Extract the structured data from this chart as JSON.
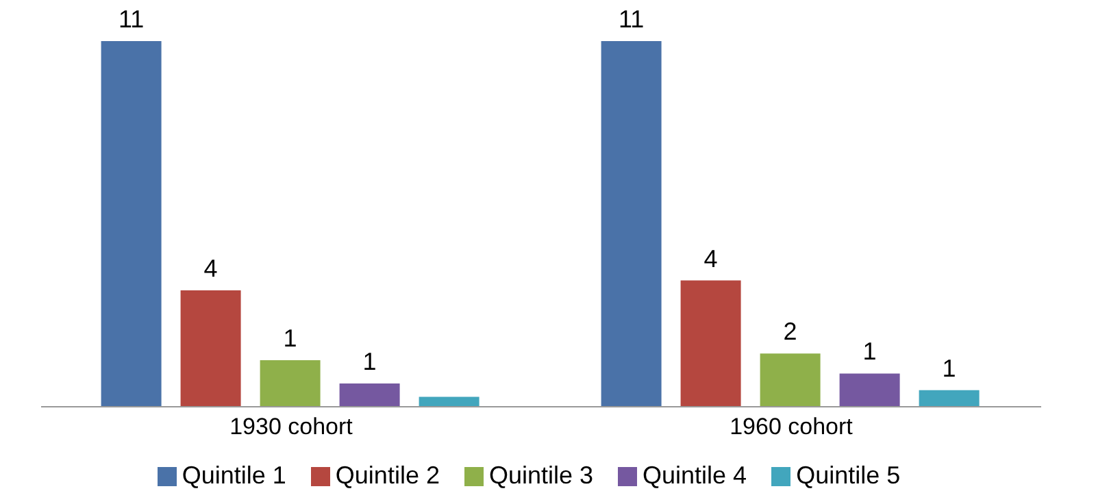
{
  "chart_data": {
    "type": "bar",
    "categories": [
      "1930 cohort",
      "1960 cohort"
    ],
    "series": [
      {
        "name": "Quintile 1",
        "color": "#4a72a8",
        "values": [
          11,
          11
        ],
        "value_labels": [
          "11",
          "11"
        ]
      },
      {
        "name": "Quintile 2",
        "color": "#b5473f",
        "values": [
          3.5,
          3.8
        ],
        "value_labels": [
          "4",
          "4"
        ]
      },
      {
        "name": "Quintile 3",
        "color": "#8fb04a",
        "values": [
          1.4,
          1.6
        ],
        "value_labels": [
          "1",
          "2"
        ]
      },
      {
        "name": "Quintile 4",
        "color": "#7558a0",
        "values": [
          0.7,
          1.0
        ],
        "value_labels": [
          "1",
          "1"
        ]
      },
      {
        "name": "Quintile 5",
        "color": "#42a6bd",
        "values": [
          0.3,
          0.5
        ],
        "value_labels": [
          null,
          "1"
        ]
      }
    ],
    "legend": "bottom",
    "grid": false
  }
}
